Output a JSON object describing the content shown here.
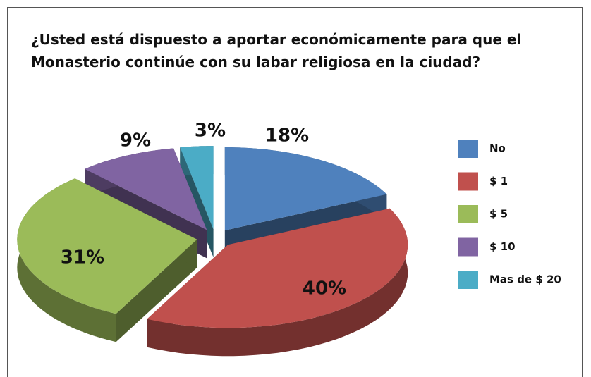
{
  "chart_data": {
    "type": "pie3d",
    "title": "¿Usted está dispuesto a aportar económicamente para que el Monasterio continúe con su labar religiosa en la ciudad?",
    "categories": [
      "No",
      "$ 1",
      "$ 5",
      "$ 10",
      "Mas de  $ 20"
    ],
    "values": [
      18,
      40,
      31,
      9,
      3
    ],
    "value_labels": [
      "18%",
      "40%",
      "31%",
      "9%",
      "3%"
    ],
    "colors": [
      "#4f81bd",
      "#c0504d",
      "#9bbb59",
      "#8064a2",
      "#4bacc6"
    ],
    "legend": "right"
  }
}
